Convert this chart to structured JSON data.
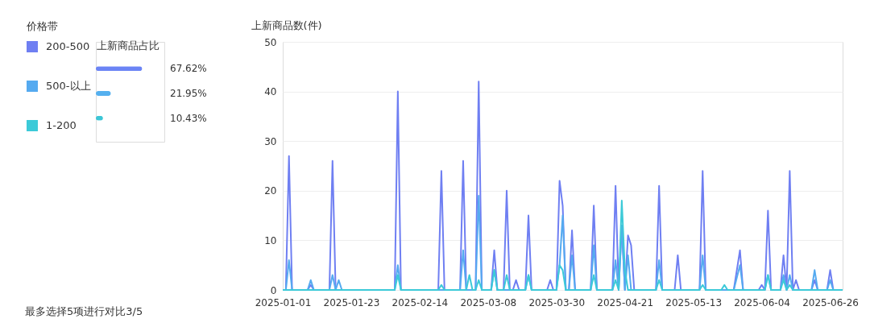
{
  "chart_data": [
    {
      "type": "bar",
      "orientation": "horizontal",
      "xlabel": "上新商品占比",
      "categories": [
        null,
        null,
        null
      ],
      "values": [
        67.62,
        21.95,
        10.43
      ],
      "colors": [
        "#6b84f5",
        "#55b0ef",
        "#3cc6d6"
      ],
      "value_labels": [
        "67.62%",
        "21.95%",
        "10.43%"
      ],
      "xlim": [
        0,
        100
      ],
      "tick_labels": false,
      "grid": false,
      "annotations": [
        "最多选择5项进行对比3/5"
      ]
    },
    {
      "type": "line",
      "ylabel": "上新商品数(件)",
      "xlim": [
        "2025-01-01",
        "2025-06-30"
      ],
      "xticks": [
        "2025-01-01",
        "2025-01-23",
        "2025-02-14",
        "2025-03-08",
        "2025-03-30",
        "2025-04-21",
        "2025-05-13",
        "2025-06-04",
        "2025-06-26"
      ],
      "ylim": [
        0,
        50
      ],
      "yticks": [
        0,
        10,
        20,
        30,
        40,
        50
      ],
      "grid": "y",
      "legend": "left",
      "legend_title": "价格带",
      "marker": "none",
      "line_style": "solid",
      "series": [
        {
          "name": "200-500",
          "color": "#6f7ff2",
          "x": [
            "2025-01-01",
            "2025-01-02",
            "2025-01-03",
            "2025-01-04",
            "2025-01-09",
            "2025-01-10",
            "2025-01-11",
            "2025-01-16",
            "2025-01-17",
            "2025-01-18",
            "2025-02-06",
            "2025-02-07",
            "2025-02-08",
            "2025-02-20",
            "2025-02-21",
            "2025-02-22",
            "2025-02-27",
            "2025-02-28",
            "2025-03-01",
            "2025-03-04",
            "2025-03-05",
            "2025-03-06",
            "2025-03-09",
            "2025-03-10",
            "2025-03-11",
            "2025-03-13",
            "2025-03-14",
            "2025-03-15",
            "2025-03-16",
            "2025-03-17",
            "2025-03-18",
            "2025-03-20",
            "2025-03-21",
            "2025-03-22",
            "2025-03-27",
            "2025-03-28",
            "2025-03-29",
            "2025-03-30",
            "2025-03-31",
            "2025-04-01",
            "2025-04-02",
            "2025-04-03",
            "2025-04-04",
            "2025-04-05",
            "2025-04-10",
            "2025-04-11",
            "2025-04-12",
            "2025-04-17",
            "2025-04-18",
            "2025-04-19",
            "2025-04-20",
            "2025-04-21",
            "2025-04-22",
            "2025-04-23",
            "2025-04-24",
            "2025-05-01",
            "2025-05-02",
            "2025-05-03",
            "2025-05-07",
            "2025-05-08",
            "2025-05-09",
            "2025-05-15",
            "2025-05-16",
            "2025-05-17",
            "2025-05-26",
            "2025-05-28",
            "2025-05-29",
            "2025-06-03",
            "2025-06-04",
            "2025-06-05",
            "2025-06-06",
            "2025-06-07",
            "2025-06-10",
            "2025-06-11",
            "2025-06-12",
            "2025-06-13",
            "2025-06-14",
            "2025-06-15",
            "2025-06-16",
            "2025-06-20",
            "2025-06-21",
            "2025-06-22",
            "2025-06-25",
            "2025-06-26",
            "2025-06-27",
            "2025-06-30"
          ],
          "values": [
            0,
            0,
            27,
            0,
            0,
            1,
            0,
            0,
            26,
            0,
            0,
            40,
            0,
            0,
            24,
            0,
            0,
            26,
            0,
            0,
            42,
            0,
            0,
            8,
            0,
            0,
            20,
            0,
            0,
            2,
            0,
            0,
            15,
            0,
            0,
            2,
            0,
            0,
            22,
            17,
            0,
            0,
            12,
            0,
            0,
            17,
            0,
            0,
            21,
            0,
            13,
            0,
            11,
            9,
            0,
            0,
            21,
            0,
            0,
            7,
            0,
            0,
            24,
            0,
            0,
            8,
            0,
            0,
            1,
            0,
            16,
            0,
            0,
            7,
            0,
            24,
            0,
            2,
            0,
            0,
            2,
            0,
            0,
            4,
            0,
            0
          ]
        },
        {
          "name": "500-以上",
          "color": "#55aaf0",
          "x": [
            "2025-01-01",
            "2025-01-02",
            "2025-01-03",
            "2025-01-04",
            "2025-01-09",
            "2025-01-10",
            "2025-01-11",
            "2025-01-16",
            "2025-01-17",
            "2025-01-18",
            "2025-01-19",
            "2025-01-20",
            "2025-02-06",
            "2025-02-07",
            "2025-02-08",
            "2025-02-27",
            "2025-02-28",
            "2025-03-01",
            "2025-03-04",
            "2025-03-05",
            "2025-03-06",
            "2025-03-09",
            "2025-03-10",
            "2025-03-11",
            "2025-03-20",
            "2025-03-21",
            "2025-03-22",
            "2025-03-30",
            "2025-03-31",
            "2025-04-01",
            "2025-04-02",
            "2025-04-03",
            "2025-04-04",
            "2025-04-05",
            "2025-04-10",
            "2025-04-11",
            "2025-04-12",
            "2025-04-17",
            "2025-04-18",
            "2025-04-19",
            "2025-04-20",
            "2025-04-21",
            "2025-04-22",
            "2025-04-23",
            "2025-05-01",
            "2025-05-02",
            "2025-05-03",
            "2025-05-15",
            "2025-05-16",
            "2025-05-17",
            "2025-05-26",
            "2025-05-28",
            "2025-05-29",
            "2025-06-05",
            "2025-06-06",
            "2025-06-07",
            "2025-06-10",
            "2025-06-11",
            "2025-06-12",
            "2025-06-13",
            "2025-06-14",
            "2025-06-20",
            "2025-06-21",
            "2025-06-22",
            "2025-06-25",
            "2025-06-26",
            "2025-06-27",
            "2025-06-30"
          ],
          "values": [
            0,
            0,
            6,
            0,
            0,
            2,
            0,
            0,
            3,
            0,
            2,
            0,
            0,
            5,
            0,
            0,
            8,
            0,
            0,
            19,
            0,
            0,
            4,
            0,
            0,
            3,
            0,
            0,
            5,
            15,
            0,
            0,
            7,
            0,
            0,
            9,
            0,
            0,
            6,
            0,
            13,
            0,
            7,
            0,
            0,
            6,
            0,
            0,
            7,
            0,
            0,
            5,
            0,
            0,
            3,
            0,
            0,
            3,
            0,
            3,
            0,
            0,
            4,
            0,
            0,
            2,
            0,
            0
          ]
        },
        {
          "name": "1-200",
          "color": "#3ccad8",
          "x": [
            "2025-01-01",
            "2025-02-06",
            "2025-02-07",
            "2025-02-08",
            "2025-02-20",
            "2025-02-21",
            "2025-02-22",
            "2025-03-01",
            "2025-03-02",
            "2025-03-03",
            "2025-03-04",
            "2025-03-05",
            "2025-03-06",
            "2025-03-09",
            "2025-03-10",
            "2025-03-11",
            "2025-03-13",
            "2025-03-14",
            "2025-03-15",
            "2025-03-20",
            "2025-03-21",
            "2025-03-22",
            "2025-03-30",
            "2025-03-31",
            "2025-04-01",
            "2025-04-02",
            "2025-04-10",
            "2025-04-11",
            "2025-04-12",
            "2025-04-17",
            "2025-04-18",
            "2025-04-19",
            "2025-04-20",
            "2025-04-21",
            "2025-04-22",
            "2025-05-01",
            "2025-05-02",
            "2025-05-03",
            "2025-05-15",
            "2025-05-16",
            "2025-05-17",
            "2025-05-22",
            "2025-05-23",
            "2025-05-24",
            "2025-06-05",
            "2025-06-06",
            "2025-06-07",
            "2025-06-10",
            "2025-06-11",
            "2025-06-12",
            "2025-06-13",
            "2025-06-14",
            "2025-06-30"
          ],
          "values": [
            0,
            0,
            3,
            0,
            0,
            1,
            0,
            0,
            3,
            0,
            0,
            2,
            0,
            0,
            4,
            0,
            0,
            3,
            0,
            0,
            3,
            0,
            0,
            5,
            4,
            0,
            0,
            3,
            0,
            0,
            2,
            0,
            18,
            4,
            0,
            0,
            2,
            0,
            0,
            1,
            0,
            0,
            1,
            0,
            0,
            3,
            0,
            0,
            2,
            0,
            1,
            0,
            0
          ]
        }
      ]
    }
  ]
}
